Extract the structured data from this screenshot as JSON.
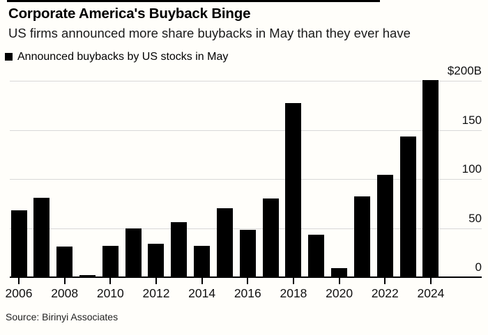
{
  "header": {
    "title": "Corporate America's Buyback Binge",
    "subtitle": "US firms announced more share buybacks in May than they ever have"
  },
  "legend": {
    "label": "Announced buybacks by US stocks in May",
    "swatch_color": "#000000"
  },
  "source": "Source: Birinyi Associates",
  "colors": {
    "bar": "#000000",
    "gridline": "#d8d8d8",
    "axis": "#000000",
    "background": "#fffefa",
    "text": "#000000"
  },
  "chart_data": {
    "type": "bar",
    "title": "Corporate America's Buyback Binge",
    "subtitle": "US firms announced more share buybacks in May than they ever have",
    "series_name": "Announced buybacks by US stocks in May ($B)",
    "categories": [
      "2006",
      "2007",
      "2008",
      "2009",
      "2010",
      "2011",
      "2012",
      "2013",
      "2014",
      "2015",
      "2016",
      "2017",
      "2018",
      "2019",
      "2020",
      "2021",
      "2022",
      "2023",
      "2024"
    ],
    "values": [
      68,
      81,
      31,
      2,
      32,
      50,
      34,
      56,
      32,
      70,
      48,
      80,
      177,
      43,
      9,
      82,
      104,
      143,
      201
    ],
    "units": "billions of US dollars",
    "xlabel": "",
    "ylabel": "",
    "ylim": [
      0,
      205
    ],
    "grid": "horizontal",
    "legend_position": "top-left",
    "yticks": [
      {
        "value": 0,
        "label": "0"
      },
      {
        "value": 50,
        "label": "50"
      },
      {
        "value": 100,
        "label": "100"
      },
      {
        "value": 150,
        "label": "150"
      },
      {
        "value": 200,
        "label": "$200B"
      }
    ],
    "xtick_labels": [
      "2006",
      "2008",
      "2010",
      "2012",
      "2014",
      "2016",
      "2018",
      "2020",
      "2022",
      "2024"
    ],
    "source": "Source: Birinyi Associates"
  }
}
